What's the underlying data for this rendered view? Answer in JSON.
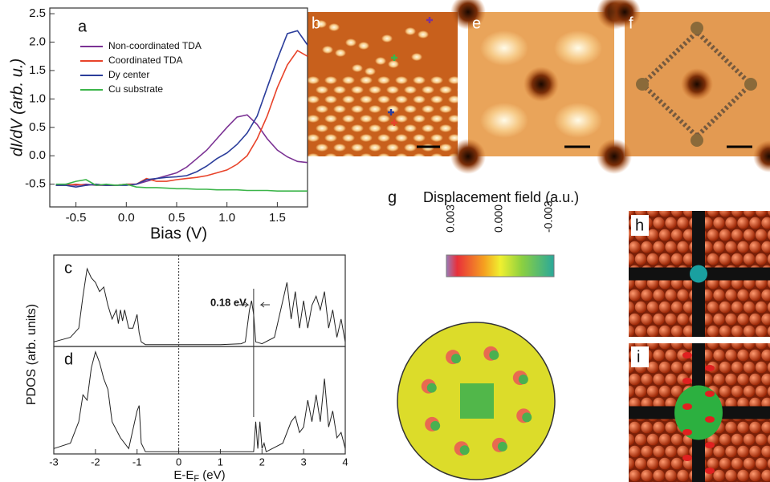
{
  "chart_data": [
    {
      "type": "line",
      "label": "a",
      "xlabel": "Bias (V)",
      "ylabel": "dI/dV (arb. u.)",
      "x": [
        -0.7,
        -0.6,
        -0.5,
        -0.4,
        -0.3,
        -0.2,
        -0.1,
        0,
        0.1,
        0.2,
        0.3,
        0.4,
        0.5,
        0.6,
        0.7,
        0.8,
        0.9,
        1.0,
        1.1,
        1.2,
        1.3,
        1.4,
        1.5,
        1.6,
        1.7,
        1.8
      ],
      "series": [
        {
          "name": "Non-coordinated TDA",
          "color": "#7b3294",
          "values": [
            -0.52,
            -0.5,
            -0.52,
            -0.5,
            -0.52,
            -0.52,
            -0.52,
            -0.5,
            -0.5,
            -0.45,
            -0.4,
            -0.35,
            -0.3,
            -0.2,
            -0.05,
            0.1,
            0.3,
            0.5,
            0.68,
            0.72,
            0.55,
            0.3,
            0.1,
            -0.02,
            -0.1,
            -0.12
          ]
        },
        {
          "name": "Coordinated TDA",
          "color": "#e8432a",
          "values": [
            -0.52,
            -0.52,
            -0.5,
            -0.52,
            -0.5,
            -0.52,
            -0.52,
            -0.5,
            -0.5,
            -0.4,
            -0.45,
            -0.45,
            -0.42,
            -0.4,
            -0.38,
            -0.35,
            -0.3,
            -0.25,
            -0.15,
            0,
            0.3,
            0.7,
            1.2,
            1.6,
            1.85,
            1.75
          ]
        },
        {
          "name": "Dy center",
          "color": "#2b3d9b",
          "values": [
            -0.52,
            -0.52,
            -0.55,
            -0.52,
            -0.5,
            -0.52,
            -0.52,
            -0.52,
            -0.5,
            -0.42,
            -0.4,
            -0.38,
            -0.37,
            -0.35,
            -0.28,
            -0.18,
            -0.05,
            0.05,
            0.2,
            0.4,
            0.7,
            1.2,
            1.7,
            2.15,
            2.2,
            1.95
          ]
        },
        {
          "name": "Cu substrate",
          "color": "#3cb54a",
          "values": [
            -0.5,
            -0.5,
            -0.45,
            -0.42,
            -0.52,
            -0.5,
            -0.52,
            -0.5,
            -0.55,
            -0.56,
            -0.56,
            -0.57,
            -0.58,
            -0.58,
            -0.59,
            -0.59,
            -0.6,
            -0.6,
            -0.6,
            -0.61,
            -0.61,
            -0.61,
            -0.62,
            -0.62,
            -0.62,
            -0.62
          ]
        }
      ],
      "xlim": [
        -0.76,
        1.8
      ],
      "xticks": [
        -0.5,
        {
          "value": 0,
          "label": "0.0"
        },
        0.5,
        {
          "value": 1,
          "label": "1.0"
        },
        1.5
      ],
      "ylim": [
        -0.9,
        2.6
      ],
      "yticks": [
        -0.5,
        {
          "value": 0,
          "label": "0.0"
        },
        0.5,
        {
          "value": 1,
          "label": "1.0"
        },
        1.5,
        {
          "value": 2,
          "label": "2.0"
        },
        2.5
      ]
    },
    {
      "type": "line",
      "label": "c",
      "ylabel": "PDOS (arb. units)",
      "annotation": "0.18 eV",
      "color": "#222222",
      "x": [
        -3,
        -2.6,
        -2.4,
        -2.3,
        -2.2,
        -2.1,
        -2.0,
        -1.9,
        -1.8,
        -1.7,
        -1.6,
        -1.5,
        -1.45,
        -1.4,
        -1.35,
        -1.3,
        -1.2,
        -1.1,
        -1.0,
        -0.95,
        -0.9,
        -0.8,
        -0.5,
        0,
        1.0,
        1.5,
        1.6,
        1.7,
        1.75,
        1.8,
        1.85,
        2.0,
        2.3,
        2.5,
        2.6,
        2.7,
        2.8,
        2.9,
        3.0,
        3.1,
        3.2,
        3.3,
        3.4,
        3.5,
        3.6,
        3.7,
        3.8,
        3.9,
        4.0
      ],
      "values": [
        0.05,
        0.1,
        0.2,
        0.55,
        0.85,
        0.75,
        0.7,
        0.6,
        0.65,
        0.45,
        0.3,
        0.4,
        0.25,
        0.4,
        0.28,
        0.4,
        0.2,
        0.2,
        0.35,
        0.15,
        0.05,
        0.02,
        0.02,
        0.02,
        0.02,
        0.03,
        0.05,
        0.4,
        0.5,
        0.35,
        0.05,
        0.03,
        0.1,
        0.5,
        0.7,
        0.3,
        0.6,
        0.2,
        0.5,
        0.2,
        0.45,
        0.55,
        0.4,
        0.6,
        0.2,
        0.4,
        0.1,
        0.3,
        0.05
      ],
      "xlim": [
        -3,
        4
      ],
      "ylim": [
        0,
        1
      ]
    },
    {
      "type": "line",
      "label": "d",
      "xlabel": {
        "main": "E-E",
        "sub": "F",
        "unit": " (eV)"
      },
      "color": "#222222",
      "x": [
        -3,
        -2.6,
        -2.4,
        -2.3,
        -2.2,
        -2.1,
        -2.0,
        -1.9,
        -1.8,
        -1.7,
        -1.6,
        -1.4,
        -1.2,
        -1.0,
        -0.95,
        -0.9,
        -0.8,
        0,
        1.8,
        1.85,
        1.9,
        1.95,
        2.0,
        2.05,
        2.1,
        2.5,
        2.7,
        2.8,
        2.9,
        3.0,
        3.1,
        3.2,
        3.3,
        3.4,
        3.5,
        3.6,
        3.7,
        3.8,
        3.9,
        4.0
      ],
      "values": [
        0.05,
        0.1,
        0.3,
        0.55,
        0.5,
        0.8,
        0.95,
        0.85,
        0.7,
        0.6,
        0.3,
        0.15,
        0.05,
        0.4,
        0.45,
        0.1,
        0.02,
        0.02,
        0.02,
        0.3,
        0.05,
        0.3,
        0.05,
        0.1,
        0.02,
        0.1,
        0.3,
        0.35,
        0.2,
        0.25,
        0.5,
        0.3,
        0.55,
        0.3,
        0.7,
        0.25,
        0.4,
        0.15,
        0.2,
        0.05
      ],
      "xlim": [
        -3,
        4
      ],
      "xticks": [
        -3,
        -2,
        -1,
        0,
        1,
        2,
        3,
        4
      ],
      "ylim": [
        0,
        1
      ]
    }
  ],
  "panels": {
    "b": "b",
    "e": "e",
    "f": "f",
    "g": {
      "label": "g",
      "title": "Displacement field (a.u.)",
      "colorbar_ticks": [
        "0.003",
        "0.000",
        "-0.003"
      ]
    },
    "h": "h",
    "i": "i"
  }
}
